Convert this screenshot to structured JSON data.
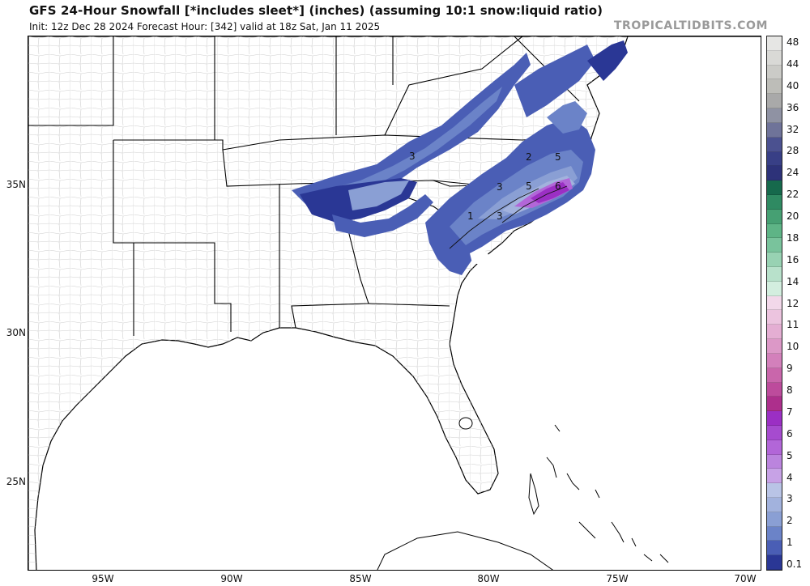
{
  "header": {
    "title": "GFS 24-Hour Snowfall [*includes sleet*] (inches) (assuming 10:1 snow:liquid ratio)",
    "subtitle": "Init: 12z Dec 28 2024   Forecast Hour: [342]   valid at 18z Sat, Jan 11 2025",
    "brand": "TROPICALTIDBITS.COM"
  },
  "axes": {
    "latitude_labels": [
      "35N",
      "30N",
      "25N"
    ],
    "longitude_labels": [
      "95W",
      "90W",
      "85W",
      "80W",
      "75W",
      "70W"
    ]
  },
  "colorbar": {
    "labels": [
      "48",
      "44",
      "40",
      "36",
      "32",
      "28",
      "24",
      "22",
      "20",
      "18",
      "16",
      "14",
      "12",
      "11",
      "10",
      "9",
      "8",
      "7",
      "6",
      "5",
      "4",
      "3",
      "2",
      "1",
      "0.1"
    ],
    "colors": [
      "#e6e6e4",
      "#d9d9d6",
      "#cbcbc7",
      "#bdbdb8",
      "#a9a9a9",
      "#8f92a3",
      "#6f7399",
      "#4b5190",
      "#383f86",
      "#2d3279",
      "#16694c",
      "#2f8a62",
      "#46a073",
      "#5eb486",
      "#79c39c",
      "#98d2b3",
      "#b8e1cb",
      "#d3eedf",
      "#f2d8ea",
      "#ecc4df",
      "#e4aed3",
      "#dc98c7",
      "#d380bb",
      "#c966ab",
      "#bd4b9c",
      "#ad2f8c",
      "#9b2fc4",
      "#a64bcf",
      "#b266d8",
      "#bb84de",
      "#c7a2e6",
      "#b9c4e6",
      "#a2b2dd",
      "#8a9fd4",
      "#6b83c8",
      "#4a5eb5",
      "#2a3795"
    ]
  },
  "map_data": {
    "contour_labels": [
      "3",
      "2",
      "5",
      "3",
      "5",
      "6",
      "1",
      "3"
    ],
    "accent": "#2a3795",
    "max_color": "#9b2fc4"
  }
}
